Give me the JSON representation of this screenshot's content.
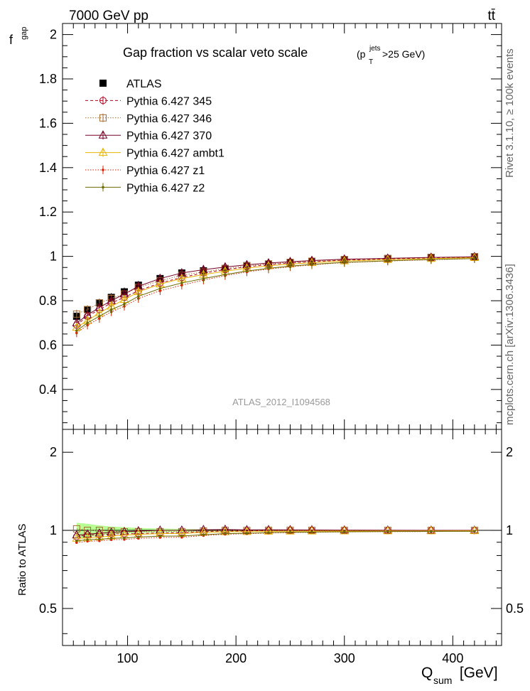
{
  "header": {
    "energy_label": "7000 GeV pp",
    "process_label": "tt̄",
    "rivet_label": "Rivet 3.1.10, ≥ 100k events",
    "mcplots_label": "mcplots.cern.ch [arXiv:1306.3436]",
    "analysis_label": "ATLAS_2012_I1094568"
  },
  "chart_data": [
    {
      "type": "scatter",
      "title": "Gap fraction vs scalar veto scale",
      "title_suffix": "(p",
      "title_sup": "jets",
      "title_sub": "T",
      "title_tail": ">25 GeV)",
      "ylabel": "f",
      "ylabel_sub": "gap",
      "xlim": [
        40,
        445
      ],
      "ylim": [
        0.22,
        2.05
      ],
      "y_ticks": [
        0.4,
        0.6,
        0.8,
        1,
        1.2,
        1.4,
        1.6,
        1.8,
        2
      ],
      "y_tick_labels": [
        "0.4",
        "0.6",
        "0.8",
        "1",
        "1.2",
        "1.4",
        "1.6",
        "1.8",
        "2"
      ],
      "legend_position": "top-left",
      "x": [
        53,
        63,
        74,
        85,
        97,
        110,
        130,
        150,
        170,
        190,
        210,
        230,
        250,
        270,
        300,
        340,
        380,
        420
      ],
      "series": [
        {
          "name": "ATLAS",
          "color": "#000000",
          "marker": "square-filled",
          "line": "none",
          "values": [
            0.73,
            0.76,
            0.79,
            0.815,
            0.84,
            0.87,
            0.9,
            0.925,
            0.935,
            0.945,
            0.958,
            0.965,
            0.972,
            0.978,
            0.985,
            0.99,
            0.995,
            0.998
          ]
        },
        {
          "name": "Pythia 6.427 345",
          "color": "#b5001f",
          "marker": "circle-open",
          "line": "dashed",
          "values": [
            0.69,
            0.73,
            0.76,
            0.79,
            0.815,
            0.845,
            0.88,
            0.905,
            0.925,
            0.94,
            0.953,
            0.963,
            0.97,
            0.976,
            0.983,
            0.988,
            0.993,
            0.996
          ]
        },
        {
          "name": "Pythia 6.427 346",
          "color": "#a86b2f",
          "marker": "square-open",
          "line": "dotted",
          "values": [
            0.74,
            0.76,
            0.79,
            0.81,
            0.83,
            0.86,
            0.89,
            0.915,
            0.93,
            0.945,
            0.957,
            0.966,
            0.973,
            0.978,
            0.985,
            0.99,
            0.995,
            0.998
          ]
        },
        {
          "name": "Pythia 6.427 370",
          "color": "#750025",
          "marker": "triangle-open",
          "line": "solid",
          "values": [
            0.7,
            0.735,
            0.77,
            0.8,
            0.83,
            0.865,
            0.9,
            0.925,
            0.94,
            0.952,
            0.962,
            0.97,
            0.976,
            0.981,
            0.987,
            0.991,
            0.995,
            0.998
          ]
        },
        {
          "name": "Pythia 6.427 ambt1",
          "color": "#e6b400",
          "marker": "triangle-open",
          "line": "solid",
          "values": [
            0.68,
            0.71,
            0.745,
            0.775,
            0.805,
            0.84,
            0.875,
            0.9,
            0.918,
            0.933,
            0.947,
            0.957,
            0.965,
            0.971,
            0.979,
            0.985,
            0.99,
            0.994
          ]
        },
        {
          "name": "Pythia 6.427 z1",
          "color": "#e01c00",
          "marker": "dot",
          "line": "dotted",
          "values": [
            0.655,
            0.69,
            0.72,
            0.75,
            0.775,
            0.81,
            0.845,
            0.87,
            0.893,
            0.913,
            0.93,
            0.943,
            0.953,
            0.962,
            0.972,
            0.979,
            0.985,
            0.99
          ]
        },
        {
          "name": "Pythia 6.427 z2",
          "color": "#6b6b00",
          "marker": "dot",
          "line": "solid",
          "values": [
            0.665,
            0.7,
            0.73,
            0.76,
            0.785,
            0.82,
            0.855,
            0.88,
            0.9,
            0.918,
            0.934,
            0.946,
            0.956,
            0.964,
            0.973,
            0.98,
            0.986,
            0.99
          ]
        }
      ]
    },
    {
      "type": "scatter",
      "ylabel": "Ratio to ATLAS",
      "xlabel": "Q",
      "xlabel_sub": "sum",
      "xlabel_tail": " [GeV]",
      "xlim": [
        40,
        445
      ],
      "ylim": [
        0.36,
        2.45
      ],
      "log_y": true,
      "x_ticks": [
        100,
        200,
        300,
        400
      ],
      "x_tick_labels": [
        "100",
        "200",
        "300",
        "400"
      ],
      "y_ticks": [
        0.5,
        1,
        2
      ],
      "y_tick_labels": [
        "0.5",
        "1",
        "2"
      ],
      "band": {
        "color": "#99ff66",
        "lower": [
          0.93,
          0.94,
          0.955,
          0.965,
          0.972,
          0.978,
          0.984,
          0.987,
          0.99,
          0.992,
          0.994,
          0.995,
          0.996,
          0.997,
          0.998,
          0.998,
          0.999,
          0.999
        ],
        "upper": [
          1.07,
          1.06,
          1.045,
          1.035,
          1.028,
          1.022,
          1.016,
          1.013,
          1.01,
          1.008,
          1.006,
          1.005,
          1.004,
          1.003,
          1.002,
          1.002,
          1.001,
          1.001
        ]
      }
    }
  ]
}
